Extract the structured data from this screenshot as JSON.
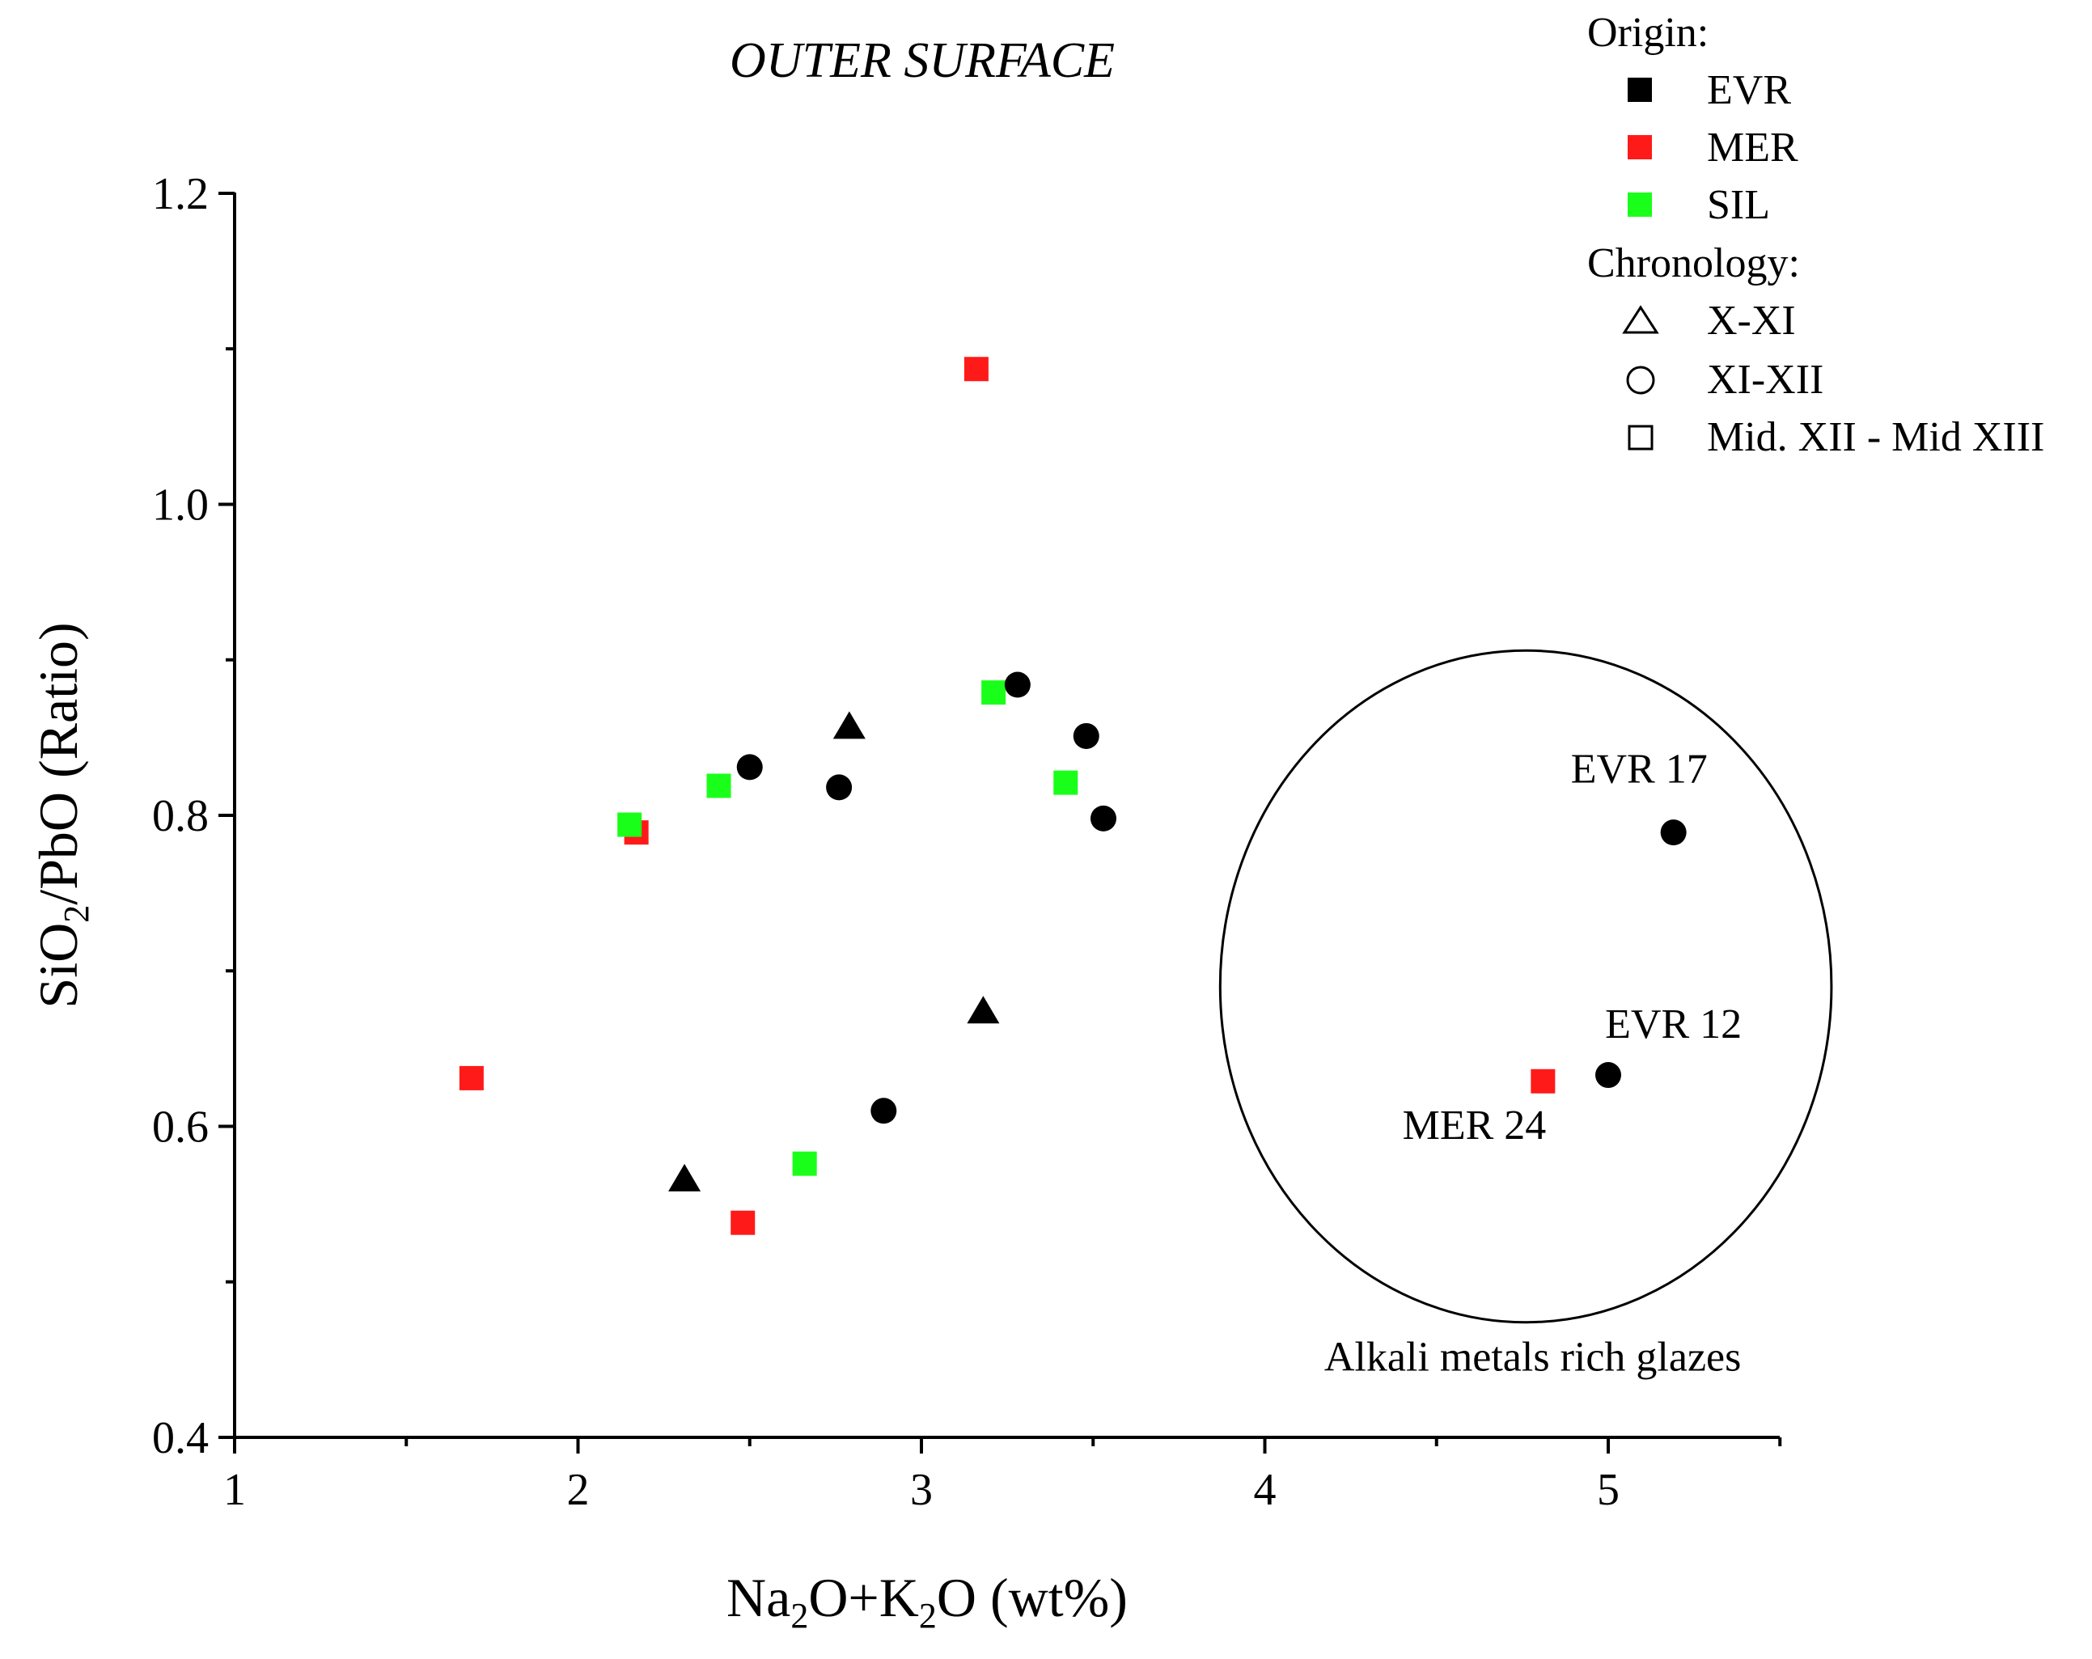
{
  "chart_data": {
    "type": "scatter",
    "title": "OUTER SURFACE",
    "xlabel_parts": [
      "Na",
      "2",
      "O+K",
      "2",
      "O (wt%)"
    ],
    "ylabel_parts": [
      "SiO",
      "2",
      "/PbO (Ratio)"
    ],
    "xlim": [
      1,
      5.5
    ],
    "ylim": [
      0.4,
      1.2
    ],
    "x_ticks": [
      1,
      2,
      3,
      4,
      5
    ],
    "x_tick_labels": [
      "1",
      "2",
      "3",
      "4",
      "5"
    ],
    "y_ticks": [
      0.4,
      0.6,
      0.8,
      1.0,
      1.2
    ],
    "y_tick_labels": [
      "0.4",
      "0.6",
      "0.8",
      "1.0",
      "1.2"
    ],
    "colors": {
      "EVR": "#000000",
      "MER": "#ff1a1a",
      "SIL": "#1aff1a"
    },
    "legend": {
      "origin_title": "Origin:",
      "origin_items": [
        {
          "label": "EVR",
          "color": "#000000"
        },
        {
          "label": "MER",
          "color": "#ff1a1a"
        },
        {
          "label": "SIL",
          "color": "#1aff1a"
        }
      ],
      "chronology_title": "Chronology:",
      "chronology_items": [
        {
          "label": "X-XI",
          "shape": "triangle"
        },
        {
          "label": "XI-XII",
          "shape": "circle"
        },
        {
          "label": "Mid. XII - Mid XIII",
          "shape": "square"
        }
      ]
    },
    "points": [
      {
        "x": 3.16,
        "y": 1.087,
        "origin": "MER",
        "shape": "square"
      },
      {
        "x": 1.69,
        "y": 0.631,
        "origin": "MER",
        "shape": "square"
      },
      {
        "x": 2.17,
        "y": 0.789,
        "origin": "MER",
        "shape": "square"
      },
      {
        "x": 2.48,
        "y": 0.538,
        "origin": "MER",
        "shape": "square"
      },
      {
        "x": 4.81,
        "y": 0.629,
        "origin": "MER",
        "shape": "square"
      },
      {
        "x": 2.15,
        "y": 0.794,
        "origin": "SIL",
        "shape": "square"
      },
      {
        "x": 2.41,
        "y": 0.819,
        "origin": "SIL",
        "shape": "square"
      },
      {
        "x": 3.21,
        "y": 0.879,
        "origin": "SIL",
        "shape": "square"
      },
      {
        "x": 3.42,
        "y": 0.821,
        "origin": "SIL",
        "shape": "square"
      },
      {
        "x": 2.66,
        "y": 0.576,
        "origin": "SIL",
        "shape": "square"
      },
      {
        "x": 2.79,
        "y": 0.857,
        "origin": "EVR",
        "shape": "triangle"
      },
      {
        "x": 3.18,
        "y": 0.674,
        "origin": "EVR",
        "shape": "triangle"
      },
      {
        "x": 2.31,
        "y": 0.566,
        "origin": "EVR",
        "shape": "triangle"
      },
      {
        "x": 2.5,
        "y": 0.831,
        "origin": "EVR",
        "shape": "circle"
      },
      {
        "x": 2.76,
        "y": 0.818,
        "origin": "EVR",
        "shape": "circle"
      },
      {
        "x": 3.28,
        "y": 0.884,
        "origin": "EVR",
        "shape": "circle"
      },
      {
        "x": 3.48,
        "y": 0.851,
        "origin": "EVR",
        "shape": "circle"
      },
      {
        "x": 3.53,
        "y": 0.798,
        "origin": "EVR",
        "shape": "circle"
      },
      {
        "x": 2.89,
        "y": 0.61,
        "origin": "EVR",
        "shape": "circle"
      },
      {
        "x": 5.19,
        "y": 0.789,
        "origin": "EVR",
        "shape": "circle"
      },
      {
        "x": 5.0,
        "y": 0.633,
        "origin": "EVR",
        "shape": "circle"
      }
    ],
    "annotations": [
      {
        "text": "EVR 17",
        "x": 5.09,
        "y": 0.821
      },
      {
        "text": "EVR 12",
        "x": 5.19,
        "y": 0.657
      },
      {
        "text": "MER 24",
        "x": 4.61,
        "y": 0.592
      }
    ],
    "region": {
      "label": "Alkali metals rich glazes",
      "center_x": 4.76,
      "center_y": 0.69,
      "radius_x": 0.89,
      "radius_y": 0.216,
      "label_x": 4.78,
      "label_y": 0.443
    }
  }
}
